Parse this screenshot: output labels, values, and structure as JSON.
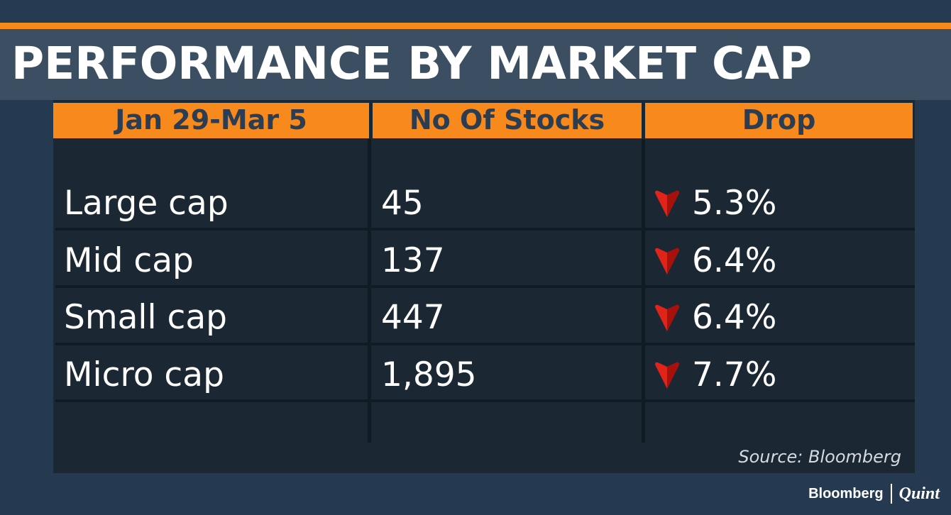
{
  "title": "PERFORMANCE BY MARKET CAP",
  "chart_data": {
    "type": "table",
    "columns": [
      "Jan 29-Mar 5",
      "No Of Stocks",
      "Drop"
    ],
    "rows": [
      {
        "segment": "Large cap",
        "stocks": "45",
        "drop": "5.3%"
      },
      {
        "segment": "Mid cap",
        "stocks": "137",
        "drop": "6.4%"
      },
      {
        "segment": "Small cap",
        "stocks": "447",
        "drop": "6.4%"
      },
      {
        "segment": "Micro cap",
        "stocks": "1,895",
        "drop": "7.7%"
      }
    ],
    "drop_icon": "down-arrow-icon"
  },
  "source": "Source: Bloomberg",
  "brand": {
    "left": "Bloomberg",
    "right": "Quint"
  },
  "colors": {
    "accent": "#f7891d",
    "background": "#253a51",
    "title_bar": "#3b4e62",
    "table_bg": "#1b2733",
    "header_text": "#2b3d53",
    "down_arrow": "#e2231a"
  }
}
